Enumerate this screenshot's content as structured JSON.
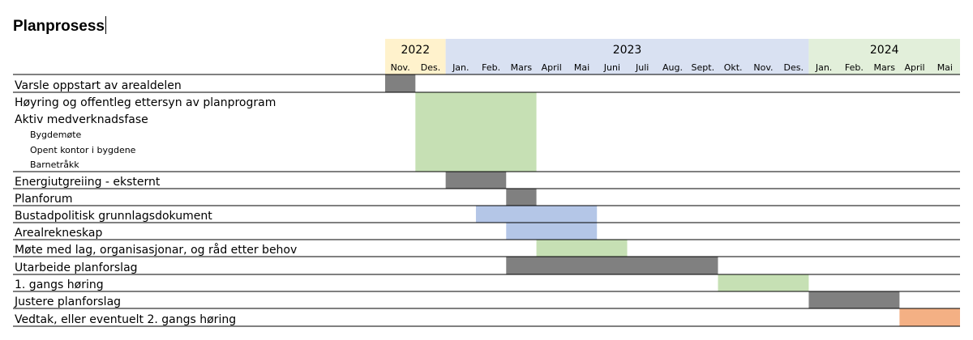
{
  "title": "Planprosess",
  "chart_data": {
    "type": "gantt",
    "years": [
      {
        "label": "2022",
        "start": 0,
        "span": 2,
        "color": "#FFF2CC"
      },
      {
        "label": "2023",
        "start": 2,
        "span": 12,
        "color": "#D9E1F2"
      },
      {
        "label": "2024",
        "start": 14,
        "span": 5,
        "color": "#E2EFDA"
      }
    ],
    "months": [
      "Nov.",
      "Des.",
      "Jan.",
      "Feb.",
      "Mars",
      "April",
      "Mai",
      "Juni",
      "Juli",
      "Aug.",
      "Sept.",
      "Okt.",
      "Nov.",
      "Des.",
      "Jan.",
      "Feb.",
      "Mars",
      "April",
      "Mai"
    ],
    "colors": {
      "grey": "#808080",
      "green": "#C6E0B4",
      "blue": "#B4C6E7",
      "orange": "#F4B084"
    },
    "rows": [
      {
        "label": "Varsle oppstart av arealdelen",
        "level": 0
      },
      {
        "label": "Høyring og offentleg ettersyn av planprogram",
        "level": 0
      },
      {
        "label": "Aktiv medverknadsfase",
        "level": 0
      },
      {
        "label": "Bygdemøte",
        "level": 1
      },
      {
        "label": "Opent kontor i bygdene",
        "level": 1
      },
      {
        "label": "Barnetråkk",
        "level": 1
      },
      {
        "label": "Energiutgreiing - eksternt",
        "level": 0
      },
      {
        "label": "Planforum",
        "level": 0
      },
      {
        "label": "Bustadpolitisk grunnlagsdokument",
        "level": 0
      },
      {
        "label": "Arealrekneskap",
        "level": 0
      },
      {
        "label": "Møte med lag, organisasjonar, og råd etter behov",
        "level": 0
      },
      {
        "label": "Utarbeide planforslag",
        "level": 0
      },
      {
        "label": "1. gangs høring",
        "level": 0
      },
      {
        "label": "Justere planforslag",
        "level": 0
      },
      {
        "label": "Vedtak, eller eventuelt 2. gangs høring",
        "level": 0
      }
    ],
    "bars": [
      {
        "rows": [
          0,
          0
        ],
        "start": "Nov. 2022",
        "end": "Nov. 2022",
        "color": "grey"
      },
      {
        "rows": [
          1,
          5
        ],
        "start": "Des. 2022",
        "end": "Mars 2023",
        "color": "green"
      },
      {
        "rows": [
          6,
          6
        ],
        "start": "Jan. 2023",
        "end": "Feb. 2023",
        "color": "grey"
      },
      {
        "rows": [
          7,
          7
        ],
        "start": "Mars 2023",
        "end": "Mars 2023",
        "color": "grey"
      },
      {
        "rows": [
          8,
          8
        ],
        "start": "Feb. 2023",
        "end": "Mai 2023",
        "color": "blue"
      },
      {
        "rows": [
          9,
          9
        ],
        "start": "Mars 2023",
        "end": "Mai 2023",
        "color": "blue"
      },
      {
        "rows": [
          10,
          10
        ],
        "start": "April 2023",
        "end": "Juni 2023",
        "color": "green"
      },
      {
        "rows": [
          11,
          11
        ],
        "start": "Mars 2023",
        "end": "Sept. 2023",
        "color": "grey"
      },
      {
        "rows": [
          12,
          12
        ],
        "start": "Okt. 2023",
        "end": "Des. 2023",
        "color": "green"
      },
      {
        "rows": [
          13,
          13
        ],
        "start": "Jan. 2024",
        "end": "Mars 2024",
        "color": "grey"
      },
      {
        "rows": [
          14,
          14
        ],
        "start": "April 2024",
        "end": "Mai 2024",
        "color": "orange"
      }
    ]
  }
}
